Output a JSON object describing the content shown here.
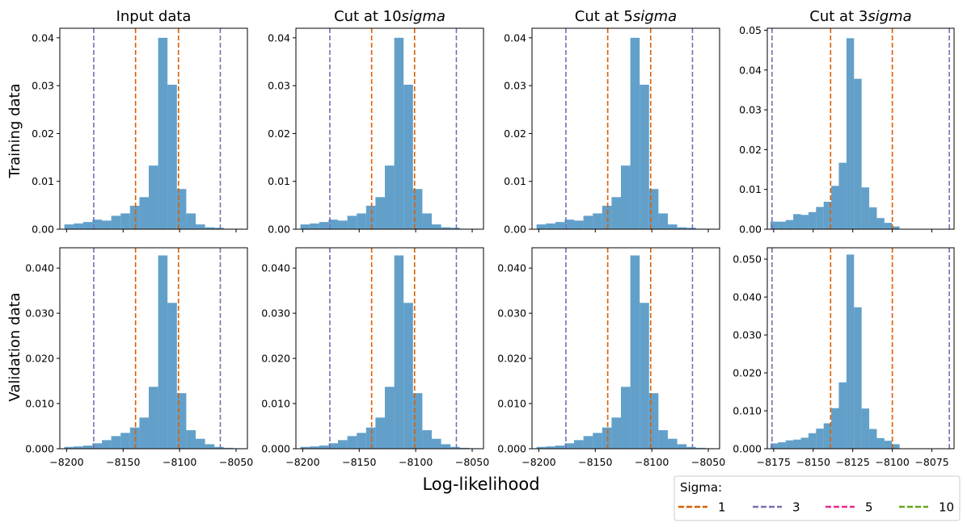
{
  "figure": {
    "xlabel": "Log-likelihood",
    "legend": {
      "title": "Sigma:",
      "placement": "bottom-right",
      "entries": [
        {
          "label": "1",
          "color": "#d95f02",
          "style": "dashed"
        },
        {
          "label": "3",
          "color": "#7570b3",
          "style": "dashed"
        },
        {
          "label": "5",
          "color": "#e7298a",
          "style": "dashed"
        },
        {
          "label": "10",
          "color": "#66a61e",
          "style": "dashed"
        }
      ]
    },
    "row_labels": [
      "Training data",
      "Validation data"
    ],
    "bar_color": "#1f77b4",
    "bar_alpha": 0.7
  },
  "chart_data": [
    {
      "type": "bar",
      "row": 0,
      "col": 0,
      "title": "Input data",
      "xlim": [
        -8206,
        -8040
      ],
      "ylim": [
        0,
        0.042
      ],
      "xticks": [
        -8200,
        -8150,
        -8100,
        -8050
      ],
      "xticklabels": [],
      "yticks": [
        0,
        0.01,
        0.02,
        0.03,
        0.04
      ],
      "yticklabels": [
        "0.00",
        "0.01",
        "0.02",
        "0.03",
        "0.04"
      ],
      "bins": {
        "start": -8202,
        "width": 8.3
      },
      "values": [
        0.001,
        0.0012,
        0.0015,
        0.002,
        0.0018,
        0.0028,
        0.0033,
        0.0049,
        0.0067,
        0.0133,
        0.04,
        0.0302,
        0.0084,
        0.0033,
        0.001,
        0.0004,
        0.0003,
        0.0001,
        0.0001
      ],
      "vlines": [
        {
          "x": -8139,
          "sigma": "1"
        },
        {
          "x": -8101,
          "sigma": "1"
        },
        {
          "x": -8176,
          "sigma": "3"
        },
        {
          "x": -8064,
          "sigma": "3"
        }
      ]
    },
    {
      "type": "bar",
      "row": 0,
      "col": 1,
      "title": "Cut at 10$sigma$",
      "xlim": [
        -8206,
        -8040
      ],
      "ylim": [
        0,
        0.042
      ],
      "xticks": [
        -8200,
        -8150,
        -8100,
        -8050
      ],
      "xticklabels": [],
      "yticks": [
        0,
        0.01,
        0.02,
        0.03,
        0.04
      ],
      "yticklabels": [
        "0.00",
        "0.01",
        "0.02",
        "0.03",
        "0.04"
      ],
      "bins": {
        "start": -8202,
        "width": 8.3
      },
      "values": [
        0.001,
        0.0012,
        0.0015,
        0.002,
        0.0018,
        0.0028,
        0.0033,
        0.0049,
        0.0067,
        0.0133,
        0.04,
        0.0302,
        0.0084,
        0.0033,
        0.001,
        0.0004,
        0.0003,
        0.0001,
        0.0001
      ],
      "vlines": [
        {
          "x": -8139,
          "sigma": "1"
        },
        {
          "x": -8101,
          "sigma": "1"
        },
        {
          "x": -8176,
          "sigma": "3"
        },
        {
          "x": -8064,
          "sigma": "3"
        }
      ]
    },
    {
      "type": "bar",
      "row": 0,
      "col": 2,
      "title": "Cut at 5$sigma$",
      "xlim": [
        -8206,
        -8040
      ],
      "ylim": [
        0,
        0.042
      ],
      "xticks": [
        -8200,
        -8150,
        -8100,
        -8050
      ],
      "xticklabels": [],
      "yticks": [
        0,
        0.01,
        0.02,
        0.03,
        0.04
      ],
      "yticklabels": [
        "0.00",
        "0.01",
        "0.02",
        "0.03",
        "0.04"
      ],
      "bins": {
        "start": -8202,
        "width": 8.3
      },
      "values": [
        0.001,
        0.0012,
        0.0015,
        0.002,
        0.0018,
        0.0028,
        0.0033,
        0.0049,
        0.0067,
        0.0133,
        0.04,
        0.0302,
        0.0084,
        0.0033,
        0.001,
        0.0004,
        0.0003,
        0.0001,
        0.0001
      ],
      "vlines": [
        {
          "x": -8139,
          "sigma": "1"
        },
        {
          "x": -8101,
          "sigma": "1"
        },
        {
          "x": -8176,
          "sigma": "3"
        },
        {
          "x": -8064,
          "sigma": "3"
        }
      ]
    },
    {
      "type": "bar",
      "row": 0,
      "col": 3,
      "title": "Cut at 3$sigma$",
      "xlim": [
        -8179,
        -8061
      ],
      "ylim": [
        0,
        0.0505
      ],
      "xticks": [
        -8175,
        -8150,
        -8125,
        -8100,
        -8075
      ],
      "xticklabels": [],
      "yticks": [
        0,
        0.01,
        0.02,
        0.03,
        0.04,
        0.05
      ],
      "yticklabels": [
        "0.00",
        "0.01",
        "0.02",
        "0.03",
        "0.04",
        "0.05"
      ],
      "bins": {
        "start": -8177,
        "width": 4.8
      },
      "values": [
        0.0019,
        0.0019,
        0.0023,
        0.0038,
        0.0036,
        0.0043,
        0.0056,
        0.0069,
        0.0109,
        0.0167,
        0.048,
        0.0378,
        0.0105,
        0.0055,
        0.0028,
        0.0016,
        0.0007
      ],
      "vlines": [
        {
          "x": -8139,
          "sigma": "1"
        },
        {
          "x": -8100,
          "sigma": "1"
        },
        {
          "x": -8176,
          "sigma": "3"
        },
        {
          "x": -8064,
          "sigma": "3"
        }
      ]
    },
    {
      "type": "bar",
      "row": 1,
      "col": 0,
      "title": "",
      "xlim": [
        -8206,
        -8040
      ],
      "ylim": [
        0,
        0.0445
      ],
      "xticks": [
        -8200,
        -8150,
        -8100,
        -8050
      ],
      "xticklabels": [
        "−8200",
        "−8150",
        "−8100",
        "−8050"
      ],
      "yticks": [
        0,
        0.01,
        0.02,
        0.03,
        0.04
      ],
      "yticklabels": [
        "0.000",
        "0.010",
        "0.020",
        "0.030",
        "0.040"
      ],
      "bins": {
        "start": -8202,
        "width": 8.3
      },
      "values": [
        0.0004,
        0.0005,
        0.0007,
        0.0012,
        0.0019,
        0.0028,
        0.0035,
        0.0047,
        0.0069,
        0.0137,
        0.0428,
        0.0323,
        0.0123,
        0.0041,
        0.0022,
        0.001,
        0.0004,
        0.0002,
        0.0001
      ],
      "vlines": [
        {
          "x": -8139,
          "sigma": "1"
        },
        {
          "x": -8101,
          "sigma": "1"
        },
        {
          "x": -8176,
          "sigma": "3"
        },
        {
          "x": -8064,
          "sigma": "3"
        }
      ]
    },
    {
      "type": "bar",
      "row": 1,
      "col": 1,
      "title": "",
      "xlim": [
        -8206,
        -8040
      ],
      "ylim": [
        0,
        0.0445
      ],
      "xticks": [
        -8200,
        -8150,
        -8100,
        -8050
      ],
      "xticklabels": [
        "−8200",
        "−8150",
        "−8100",
        "−8050"
      ],
      "yticks": [
        0,
        0.01,
        0.02,
        0.03,
        0.04
      ],
      "yticklabels": [
        "0.000",
        "0.010",
        "0.020",
        "0.030",
        "0.040"
      ],
      "bins": {
        "start": -8202,
        "width": 8.3
      },
      "values": [
        0.0004,
        0.0005,
        0.0007,
        0.0012,
        0.0019,
        0.0028,
        0.0035,
        0.0047,
        0.0069,
        0.0137,
        0.0428,
        0.0323,
        0.0123,
        0.0041,
        0.0022,
        0.001,
        0.0004,
        0.0002,
        0.0001
      ],
      "vlines": [
        {
          "x": -8139,
          "sigma": "1"
        },
        {
          "x": -8101,
          "sigma": "1"
        },
        {
          "x": -8176,
          "sigma": "3"
        },
        {
          "x": -8064,
          "sigma": "3"
        }
      ]
    },
    {
      "type": "bar",
      "row": 1,
      "col": 2,
      "title": "",
      "xlim": [
        -8206,
        -8040
      ],
      "ylim": [
        0,
        0.0445
      ],
      "xticks": [
        -8200,
        -8150,
        -8100,
        -8050
      ],
      "xticklabels": [
        "−8200",
        "−8150",
        "−8100",
        "−8050"
      ],
      "yticks": [
        0,
        0.01,
        0.02,
        0.03,
        0.04
      ],
      "yticklabels": [
        "0.000",
        "0.010",
        "0.020",
        "0.030",
        "0.040"
      ],
      "bins": {
        "start": -8202,
        "width": 8.3
      },
      "values": [
        0.0004,
        0.0005,
        0.0007,
        0.0012,
        0.0019,
        0.0028,
        0.0035,
        0.0047,
        0.0069,
        0.0137,
        0.0428,
        0.0323,
        0.0123,
        0.0041,
        0.0022,
        0.001,
        0.0004,
        0.0002,
        0.0001
      ],
      "vlines": [
        {
          "x": -8139,
          "sigma": "1"
        },
        {
          "x": -8101,
          "sigma": "1"
        },
        {
          "x": -8176,
          "sigma": "3"
        },
        {
          "x": -8064,
          "sigma": "3"
        }
      ]
    },
    {
      "type": "bar",
      "row": 1,
      "col": 3,
      "title": "",
      "xlim": [
        -8179,
        -8061
      ],
      "ylim": [
        0,
        0.053
      ],
      "xticks": [
        -8175,
        -8150,
        -8125,
        -8100,
        -8075
      ],
      "xticklabels": [
        "−8175",
        "−8150",
        "−8125",
        "−8100",
        "−8075"
      ],
      "yticks": [
        0,
        0.01,
        0.02,
        0.03,
        0.04,
        0.05
      ],
      "yticklabels": [
        "0.000",
        "0.010",
        "0.020",
        "0.030",
        "0.040",
        "0.050"
      ],
      "bins": {
        "start": -8177,
        "width": 4.8
      },
      "values": [
        0.0014,
        0.0017,
        0.0022,
        0.0024,
        0.0029,
        0.0041,
        0.0053,
        0.0067,
        0.0107,
        0.0175,
        0.0512,
        0.0373,
        0.0106,
        0.0052,
        0.0028,
        0.0021,
        0.0012
      ],
      "vlines": [
        {
          "x": -8139,
          "sigma": "1"
        },
        {
          "x": -8100,
          "sigma": "1"
        },
        {
          "x": -8176,
          "sigma": "3"
        },
        {
          "x": -8064,
          "sigma": "3"
        }
      ]
    }
  ]
}
